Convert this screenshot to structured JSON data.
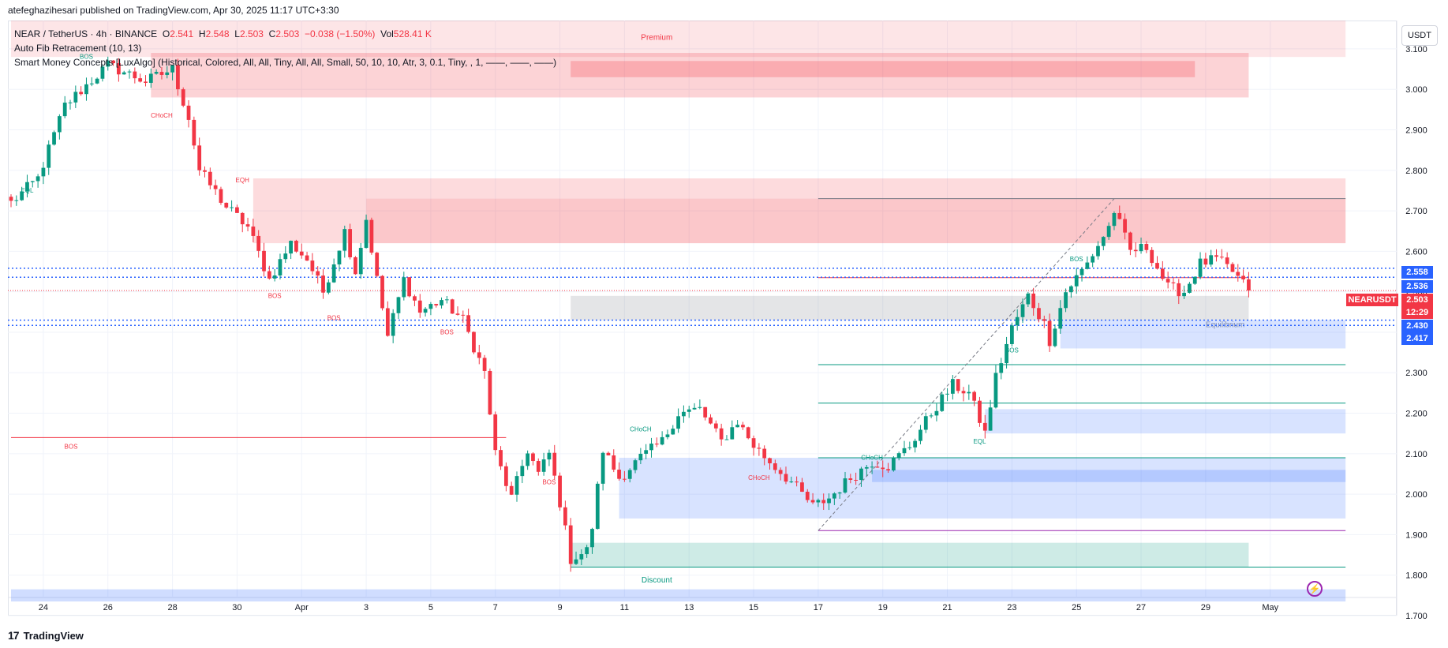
{
  "publisher": "atefeghazihesari published on TradingView.com, Apr 30, 2025 11:17 UTC+3:30",
  "legend": {
    "symbol": "NEAR / TetherUS · 4h · BINANCE",
    "o_label": "O",
    "o": "2.541",
    "h_label": "H",
    "h": "2.548",
    "l_label": "L",
    "l": "2.503",
    "c_label": "C",
    "c": "2.503",
    "change": "−0.038 (−1.50%)",
    "vol_label": "Vol",
    "vol": "528.41 K",
    "indicator1": "Auto Fib Retracement (10, 13)",
    "indicator2": "Smart Money Concepts [LuxAlgo] (Historical, Colored, All, All, Tiny, All, All, Small, 50, 10, 10, Atr, 3, 0.1, Tiny, , 1, ——, ——, ——)"
  },
  "currency_button": "USDT",
  "brand": "TradingView",
  "price_tags": {
    "p2558": "2.558",
    "p2536": "2.536",
    "p2503": "2.503",
    "countdown": "12:29",
    "p2430": "2.430",
    "p2417": "2.417",
    "symbol": "NEARUSDT"
  },
  "colors": {
    "up": "#089981",
    "down": "#f23645",
    "blue": "#2962ff"
  },
  "chart_data": {
    "type": "candlestick",
    "title": "NEAR / TetherUS · 4h · BINANCE",
    "ylim": [
      1.7,
      3.17
    ],
    "y_ticks": [
      "3.100",
      "3.000",
      "2.900",
      "2.800",
      "2.700",
      "2.600",
      "2.500",
      "2.400",
      "2.300",
      "2.200",
      "2.100",
      "2.000",
      "1.900",
      "1.800",
      "1.700"
    ],
    "x_ticks": [
      "24",
      "26",
      "28",
      "30",
      "Apr",
      "3",
      "5",
      "7",
      "9",
      "11",
      "13",
      "15",
      "17",
      "19",
      "21",
      "23",
      "25",
      "27",
      "29",
      "May"
    ],
    "anchors": [
      [
        0,
        2.72
      ],
      [
        5,
        2.78
      ],
      [
        10,
        2.96
      ],
      [
        18,
        3.06
      ],
      [
        25,
        3.02
      ],
      [
        30,
        3.05
      ],
      [
        33,
        2.93
      ],
      [
        35,
        2.8
      ],
      [
        40,
        2.71
      ],
      [
        44,
        2.66
      ],
      [
        48,
        2.53
      ],
      [
        52,
        2.62
      ],
      [
        55,
        2.58
      ],
      [
        58,
        2.5
      ],
      [
        62,
        2.65
      ],
      [
        64,
        2.55
      ],
      [
        66,
        2.68
      ],
      [
        68,
        2.53
      ],
      [
        70,
        2.39
      ],
      [
        73,
        2.53
      ],
      [
        76,
        2.45
      ],
      [
        80,
        2.48
      ],
      [
        84,
        2.43
      ],
      [
        88,
        2.3
      ],
      [
        90,
        2.1
      ],
      [
        93,
        1.99
      ],
      [
        96,
        2.11
      ],
      [
        98,
        2.05
      ],
      [
        100,
        2.1
      ],
      [
        102,
        1.98
      ],
      [
        104,
        1.84
      ],
      [
        107,
        1.86
      ],
      [
        108,
        1.92
      ],
      [
        110,
        2.11
      ],
      [
        113,
        2.04
      ],
      [
        117,
        2.09
      ],
      [
        121,
        2.13
      ],
      [
        124,
        2.2
      ],
      [
        128,
        2.21
      ],
      [
        132,
        2.13
      ],
      [
        135,
        2.18
      ],
      [
        138,
        2.12
      ],
      [
        141,
        2.08
      ],
      [
        145,
        2.03
      ],
      [
        149,
        1.97
      ],
      [
        152,
        1.99
      ],
      [
        156,
        2.04
      ],
      [
        160,
        2.08
      ],
      [
        163,
        2.07
      ],
      [
        167,
        2.12
      ],
      [
        171,
        2.2
      ],
      [
        175,
        2.27
      ],
      [
        178,
        2.25
      ],
      [
        181,
        2.15
      ],
      [
        183,
        2.29
      ],
      [
        186,
        2.41
      ],
      [
        189,
        2.49
      ],
      [
        192,
        2.42
      ],
      [
        193,
        2.38
      ],
      [
        196,
        2.5
      ],
      [
        200,
        2.57
      ],
      [
        204,
        2.66
      ],
      [
        205,
        2.7
      ],
      [
        208,
        2.6
      ],
      [
        211,
        2.61
      ],
      [
        215,
        2.51
      ],
      [
        218,
        2.5
      ],
      [
        221,
        2.57
      ],
      [
        224,
        2.58
      ],
      [
        227,
        2.55
      ],
      [
        230,
        2.503
      ]
    ],
    "candle_count": 231,
    "zones": [
      {
        "label": "Premium",
        "type": "premium",
        "from_idx": 0,
        "to_idx": 248,
        "top": 3.17,
        "bottom": 3.08
      },
      {
        "label": "Discount",
        "type": "discount",
        "from_idx": 0,
        "to_idx": 248,
        "top": 1.765,
        "bottom": 1.735
      },
      {
        "label": "Equilibrium",
        "type": "equilibrium",
        "from_idx": 104,
        "to_idx": 230,
        "top": 2.49,
        "bottom": 2.43
      }
    ],
    "annotations": [
      "BOS",
      "EQL",
      "CHoCH",
      "EQH",
      "BOS",
      "BOS",
      "BOS",
      "BOS",
      "CHoCH",
      "CHoCH",
      "EQL",
      "BOS",
      "EQL",
      "BOS",
      "BOS"
    ],
    "labels": {
      "premium": "Premium",
      "discount": "Discount",
      "equilibrium": "Equilibrium",
      "bos": "BOS",
      "eql": "EQL",
      "eqh": "EQH",
      "choch": "CHoCH"
    }
  }
}
